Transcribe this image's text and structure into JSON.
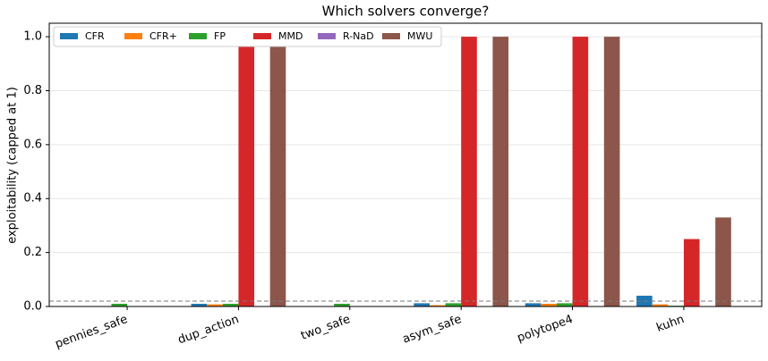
{
  "chart_data": {
    "type": "bar",
    "title": "Which solvers converge?",
    "y_label": "exploitability (capped at 1)",
    "categories": [
      "pennies_safe",
      "dup_action",
      "two_safe",
      "asym_safe",
      "polytope4",
      "kuhn"
    ],
    "series": [
      {
        "name": "CFR",
        "color": "#1f77b4",
        "values": [
          0,
          0.01,
          0,
          0.012,
          0.012,
          0.04
        ]
      },
      {
        "name": "CFR+",
        "color": "#ff7f0e",
        "values": [
          0,
          0.008,
          0,
          0.005,
          0.01,
          0.008
        ]
      },
      {
        "name": "FP",
        "color": "#2ca02c",
        "values": [
          0.01,
          0.01,
          0.01,
          0.012,
          0.012,
          0.003
        ]
      },
      {
        "name": "MMD",
        "color": "#d62728",
        "values": [
          0,
          1.0,
          0,
          1.0,
          1.0,
          0.25
        ]
      },
      {
        "name": "R-NaD",
        "color": "#9467bd",
        "values": [
          0,
          0,
          0,
          0,
          0,
          0
        ]
      },
      {
        "name": "MWU",
        "color": "#8c564b",
        "values": [
          0,
          1.0,
          0,
          1.0,
          1.0,
          0.33
        ]
      }
    ],
    "threshold": 0.02,
    "ylim": [
      0,
      1.05
    ],
    "yticks": [
      {
        "value": 0,
        "label": "0.0"
      },
      {
        "value": 0.2,
        "label": "0.2"
      },
      {
        "value": 0.4,
        "label": "0.4"
      },
      {
        "value": 0.6,
        "label": "0.6"
      },
      {
        "value": 0.8,
        "label": "0.8"
      },
      {
        "value": 1,
        "label": "1.0"
      }
    ],
    "grid": true,
    "legend": "upper left"
  }
}
